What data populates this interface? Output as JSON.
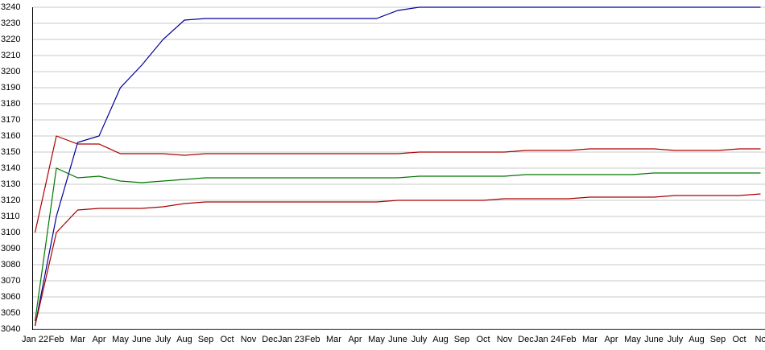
{
  "chart_data": {
    "type": "line",
    "categories": [
      "Jan 22",
      "Feb",
      "Mar",
      "Apr",
      "May",
      "June",
      "July",
      "Aug",
      "Sep",
      "Oct",
      "Nov",
      "Dec",
      "Jan 23",
      "Feb",
      "Mar",
      "Apr",
      "May",
      "June",
      "July",
      "Aug",
      "Sep",
      "Oct",
      "Nov",
      "Dec",
      "Jan 24",
      "Feb",
      "Mar",
      "Apr",
      "May",
      "June",
      "July",
      "Aug",
      "Sep",
      "Oct",
      "No"
    ],
    "series": [
      {
        "color": "#000099",
        "values": [
          3042,
          3110,
          3156,
          3160,
          3190,
          3204,
          3220,
          3232,
          3233,
          3233,
          3233,
          3233,
          3233,
          3233,
          3233,
          3233,
          3233,
          3238,
          3240,
          3240,
          3240,
          3240,
          3240,
          3240,
          3240,
          3240,
          3240,
          3240,
          3240,
          3240,
          3240,
          3240,
          3240,
          3240,
          3240
        ]
      },
      {
        "color": "#aa0000",
        "values": [
          3100,
          3160,
          3155,
          3155,
          3149,
          3149,
          3149,
          3148,
          3149,
          3149,
          3149,
          3149,
          3149,
          3149,
          3149,
          3149,
          3149,
          3149,
          3150,
          3150,
          3150,
          3150,
          3150,
          3151,
          3151,
          3151,
          3152,
          3152,
          3152,
          3152,
          3151,
          3151,
          3151,
          3152,
          3152
        ]
      },
      {
        "color": "#007700",
        "values": [
          3045,
          3140,
          3134,
          3135,
          3132,
          3131,
          3132,
          3133,
          3134,
          3134,
          3134,
          3134,
          3134,
          3134,
          3134,
          3134,
          3134,
          3134,
          3135,
          3135,
          3135,
          3135,
          3135,
          3136,
          3136,
          3136,
          3136,
          3136,
          3136,
          3137,
          3137,
          3137,
          3137,
          3137,
          3137
        ]
      },
      {
        "color": "#aa0000",
        "values": [
          3042,
          3100,
          3114,
          3115,
          3115,
          3115,
          3116,
          3118,
          3119,
          3119,
          3119,
          3119,
          3119,
          3119,
          3119,
          3119,
          3119,
          3120,
          3120,
          3120,
          3120,
          3120,
          3121,
          3121,
          3121,
          3121,
          3122,
          3122,
          3122,
          3122,
          3123,
          3123,
          3123,
          3123,
          3124
        ]
      }
    ],
    "ylim": [
      3040,
      3240
    ],
    "yticks": [
      3040,
      3050,
      3060,
      3070,
      3080,
      3090,
      3100,
      3110,
      3120,
      3130,
      3140,
      3150,
      3160,
      3170,
      3180,
      3190,
      3200,
      3210,
      3220,
      3230,
      3240
    ],
    "grid": true
  }
}
